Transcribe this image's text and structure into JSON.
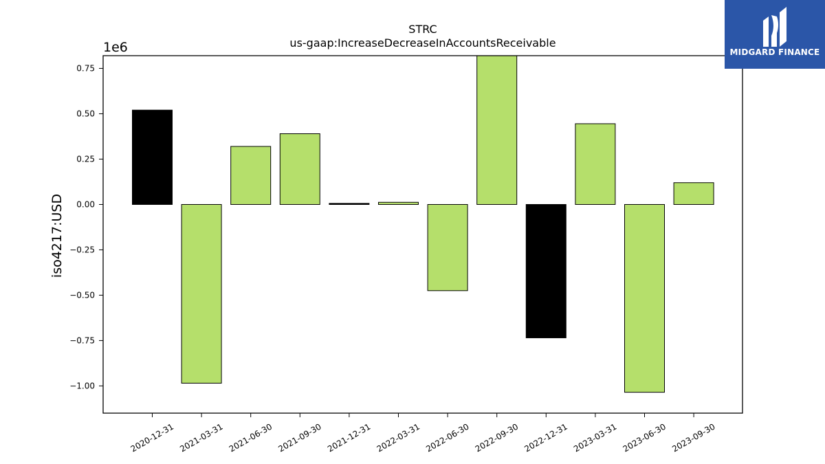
{
  "chart_data": {
    "type": "bar",
    "title": "STRC",
    "subtitle": "us-gaap:IncreaseDecreaseInAccountsReceivable",
    "xlabel": "",
    "ylabel": "iso4217:USD",
    "y_scale_label": "1e6",
    "ylim": [
      -1.15,
      0.82
    ],
    "yticks": [
      -1.0,
      -0.75,
      -0.5,
      -0.25,
      0.0,
      0.25,
      0.5,
      0.75
    ],
    "ytick_labels": [
      "−1.00",
      "−0.75",
      "−0.50",
      "−0.25",
      "0.00",
      "0.25",
      "0.50",
      "0.75"
    ],
    "grid": false,
    "categories": [
      "2020-12-31",
      "2021-03-31",
      "2021-06-30",
      "2021-09-30",
      "2021-12-31",
      "2022-03-31",
      "2022-06-30",
      "2022-09-30",
      "2022-12-31",
      "2023-03-31",
      "2023-06-30",
      "2023-09-30"
    ],
    "values": [
      0.52,
      -0.985,
      0.32,
      0.39,
      0.006,
      0.012,
      -0.475,
      0.82,
      -0.735,
      0.445,
      -1.035,
      0.12
    ],
    "bar_colors": [
      "#000000",
      "#b5df6b",
      "#b5df6b",
      "#b5df6b",
      "#000000",
      "#b5df6b",
      "#b5df6b",
      "#b5df6b",
      "#000000",
      "#b5df6b",
      "#b5df6b",
      "#b5df6b"
    ]
  },
  "logo": {
    "text": "MIDGARD FINANCE",
    "background": "#2b56a8"
  }
}
